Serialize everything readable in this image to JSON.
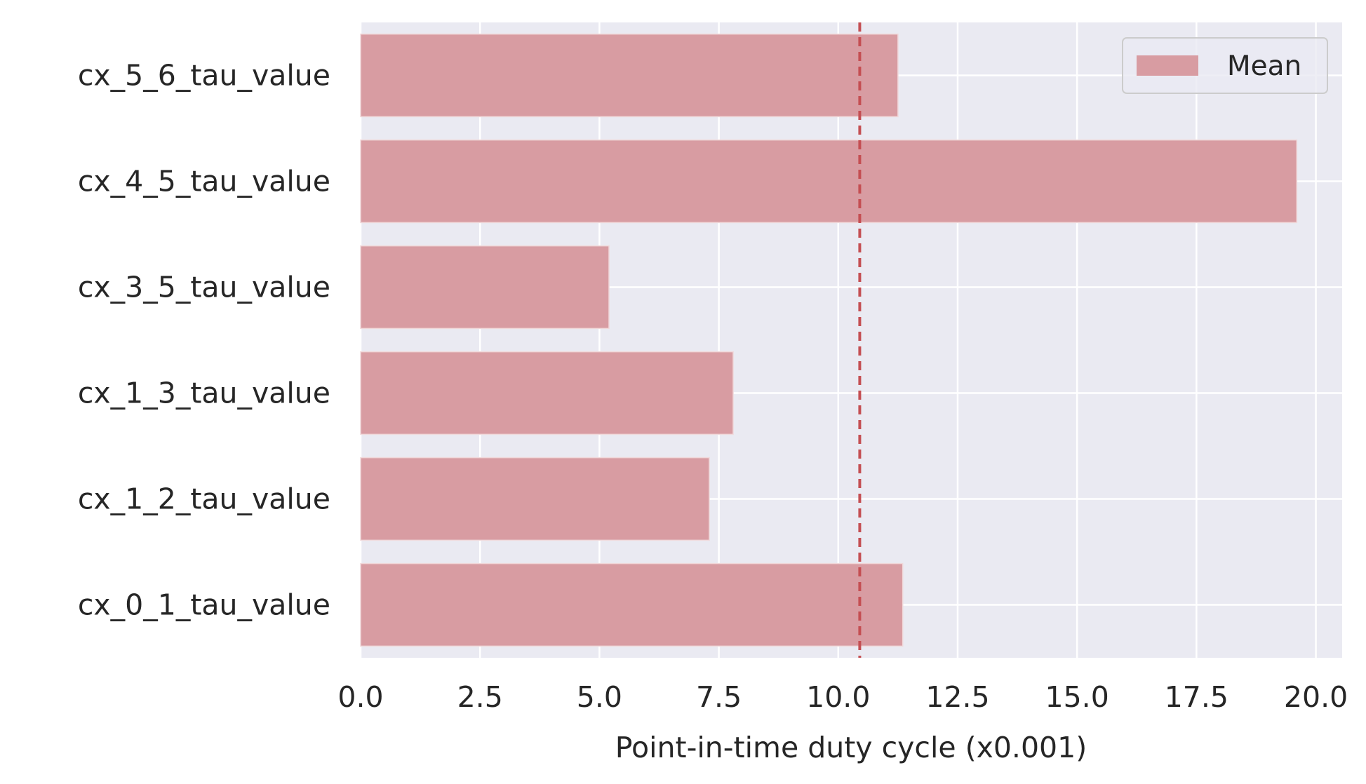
{
  "chart_data": {
    "type": "bar",
    "orientation": "horizontal",
    "categories": [
      "cx_0_1_tau_value",
      "cx_1_2_tau_value",
      "cx_1_3_tau_value",
      "cx_3_5_tau_value",
      "cx_4_5_tau_value",
      "cx_5_6_tau_value"
    ],
    "series": [
      {
        "name": "Mean",
        "values": [
          11.35,
          7.3,
          7.8,
          5.2,
          19.6,
          11.25
        ],
        "color": "#d89ca2"
      }
    ],
    "mean_line": {
      "value": 10.45,
      "color": "#c44e52",
      "style": "dashed"
    },
    "xlabel": "Point-in-time duty cycle  (x0.001)",
    "ylabel": "",
    "xlim": [
      0,
      20.55
    ],
    "xticks": [
      "0.0",
      "2.5",
      "5.0",
      "7.5",
      "10.0",
      "12.5",
      "15.0",
      "17.5",
      "20.0"
    ],
    "xtick_values": [
      0,
      2.5,
      5,
      7.5,
      10,
      12.5,
      15,
      17.5,
      20
    ],
    "grid": true,
    "legend": {
      "position": "top-right",
      "entries": [
        "Mean"
      ]
    },
    "colors": {
      "plot_background": "#eaeaf2",
      "grid": "#ffffff",
      "text": "#262626"
    }
  }
}
